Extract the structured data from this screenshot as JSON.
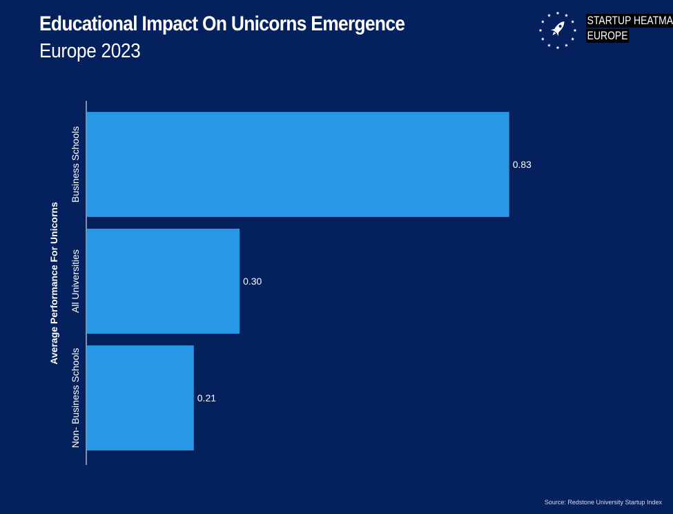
{
  "header": {
    "title": "Educational Impact On Unicorns Emergence",
    "subtitle": "Europe 2023"
  },
  "logo": {
    "line1": "STARTUP HEATMAP",
    "line2": "EUROPE",
    "icon": "rocket-in-star-ring-icon"
  },
  "colors": {
    "background": "#04215e",
    "bar": "#2897e4",
    "text": "#ffffff"
  },
  "chart_data": {
    "type": "bar",
    "orientation": "horizontal",
    "categories": [
      "Business Schools",
      "All Universities",
      "Non- Business Schools"
    ],
    "values": [
      0.83,
      0.3,
      0.21
    ],
    "value_labels": [
      "0.83",
      "0.30",
      "0.21"
    ],
    "title": "Educational Impact On Unicorns Emergence",
    "subtitle": "Europe 2023",
    "ylabel": "Average Performance For Unicorns",
    "xlabel": "",
    "xlim": [
      0,
      1.0
    ],
    "grid": false,
    "legend": "none"
  },
  "footer": {
    "source": "Source: Redstone University Startup Index"
  }
}
